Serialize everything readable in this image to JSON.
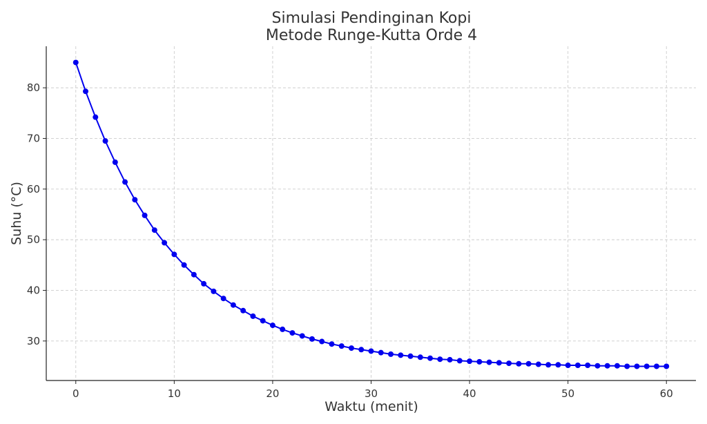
{
  "chart_data": {
    "type": "line",
    "title": [
      "Simulasi Pendinginan Kopi",
      "Metode Runge-Kutta Orde 4"
    ],
    "xlabel": "Waktu (menit)",
    "ylabel": "Suhu (°C)",
    "xlim": [
      -3,
      63
    ],
    "ylim": [
      22.2,
      88.2
    ],
    "xticks": [
      0,
      10,
      20,
      30,
      40,
      50,
      60
    ],
    "yticks": [
      30,
      40,
      50,
      60,
      70,
      80
    ],
    "grid": true,
    "colors": {
      "series": "#0000ee",
      "grid": "#cccccc",
      "axis": "#222222",
      "text": "#333333"
    },
    "series": [
      {
        "x": [
          0,
          1,
          2,
          3,
          4,
          5,
          6,
          7,
          8,
          9,
          10,
          11,
          12,
          13,
          14,
          15,
          16,
          17,
          18,
          19,
          20,
          21,
          22,
          23,
          24,
          25,
          26,
          27,
          28,
          29,
          30,
          31,
          32,
          33,
          34,
          35,
          36,
          37,
          38,
          39,
          40,
          41,
          42,
          43,
          44,
          45,
          46,
          47,
          48,
          49,
          50,
          51,
          52,
          53,
          54,
          55,
          56,
          57,
          58,
          59,
          60
        ],
        "y": [
          85.0,
          79.3,
          74.2,
          69.5,
          65.3,
          61.4,
          57.9,
          54.8,
          51.9,
          49.4,
          47.1,
          45.0,
          43.1,
          41.3,
          39.8,
          38.4,
          37.1,
          36.0,
          34.9,
          34.0,
          33.1,
          32.3,
          31.6,
          31.0,
          30.4,
          29.9,
          29.4,
          29.0,
          28.6,
          28.3,
          28.0,
          27.7,
          27.4,
          27.2,
          27.0,
          26.8,
          26.6,
          26.4,
          26.3,
          26.1,
          26.0,
          25.9,
          25.8,
          25.7,
          25.6,
          25.5,
          25.5,
          25.4,
          25.3,
          25.3,
          25.2,
          25.2,
          25.2,
          25.1,
          25.1,
          25.1,
          25.0,
          25.0,
          25.0,
          25.0,
          25.0
        ]
      }
    ]
  }
}
